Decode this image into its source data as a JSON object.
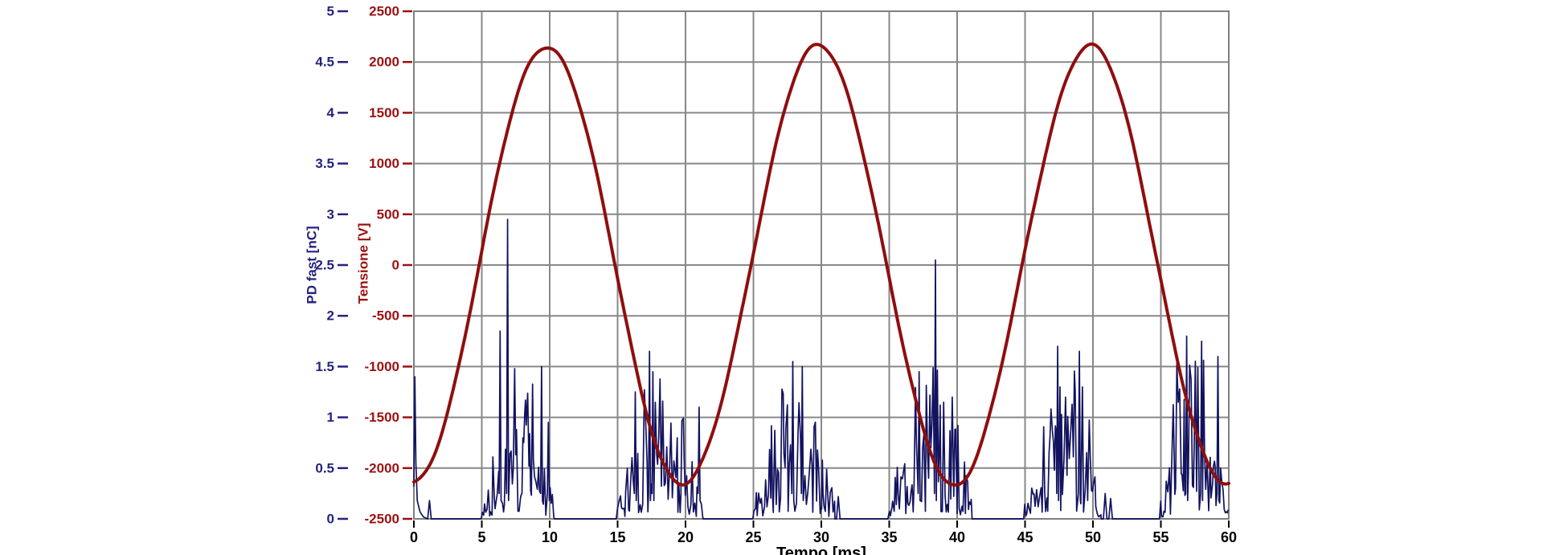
{
  "chart_data": {
    "type": "line",
    "title": "",
    "xlabel": "Tempo [ms]",
    "x_range": [
      0,
      60
    ],
    "x_ticks": [
      "0",
      "5",
      "10",
      "15",
      "20",
      "25",
      "30",
      "35",
      "40",
      "45",
      "50",
      "55",
      "60"
    ],
    "grid": {
      "visible": true,
      "x_step_ms": 5,
      "y_step_V": 500,
      "color": "#888888",
      "border_color": "#7f7f7f"
    },
    "background": "#ffffff",
    "legend": "none",
    "axes": {
      "pd": {
        "label": "PD fast [nC]",
        "range": [
          0,
          5
        ],
        "ticks": [
          "5",
          "4.5",
          "4",
          "3.5",
          "3",
          "2.5",
          "2",
          "1.5",
          "1",
          "0.5",
          "0"
        ],
        "text_color": "#23237E"
      },
      "voltage": {
        "label": "Tensione [V]",
        "range": [
          -2500,
          2500
        ],
        "ticks": [
          "2500",
          "2000",
          "1500",
          "1000",
          "500",
          "0",
          "-500",
          "-1000",
          "-1500",
          "-2000",
          "-2500"
        ],
        "text_color": "#9B1111"
      },
      "time": {
        "label": "Tempo [ms]",
        "text_color": "#000000"
      }
    },
    "series": [
      {
        "name": "Tensione",
        "kind": "sine",
        "color": "#8F0E0E",
        "stroke_width": 4,
        "amplitude_V": 2160,
        "period_ms": 20,
        "rising_zero_crossing_ms": 4.8,
        "peak_V": 2160,
        "trough_V": -2160,
        "value_at_0ms_V": -2156,
        "peaks_at_ms": [
          9.8,
          29.8,
          49.8
        ],
        "troughs_at_ms": [
          19.8,
          39.8,
          59.8
        ],
        "cycle_sample_V_per_ms": [
          -2156,
          -2008,
          -1664,
          -1157,
          -537,
          136,
          795,
          1377,
          1824,
          2092,
          2156,
          2008,
          1664,
          1157,
          537,
          -136,
          -795,
          -1377,
          -1824,
          -2092,
          -2156
        ]
      },
      {
        "name": "PD fast",
        "kind": "spike-bursts",
        "color": "#12125F",
        "stroke_width": 1.7,
        "baseline_nC": 0,
        "initial_spike_points_t_nC": [
          [
            0,
            0.32
          ],
          [
            0.07,
            1.4
          ],
          [
            0.15,
            0.55
          ],
          [
            0.25,
            0.18
          ],
          [
            0.45,
            0.07
          ],
          [
            0.7,
            0.02
          ],
          [
            1.0,
            0
          ]
        ],
        "isolated_bumps_t_nC": [
          [
            1.15,
            0.18
          ],
          [
            31.25,
            0.22
          ],
          [
            50.9,
            0.25
          ],
          [
            51.3,
            0.2
          ]
        ],
        "bursts": [
          {
            "start_ms": 4.95,
            "end_ms": 10.35,
            "max_typical_nC": 1.5
          },
          {
            "start_ms": 14.9,
            "end_ms": 21.3,
            "max_typical_nC": 1.45
          },
          {
            "start_ms": 24.95,
            "end_ms": 31.0,
            "max_typical_nC": 1.5
          },
          {
            "start_ms": 34.9,
            "end_ms": 41.1,
            "max_typical_nC": 1.5
          },
          {
            "start_ms": 44.9,
            "end_ms": 50.6,
            "max_typical_nC": 1.65
          },
          {
            "start_ms": 54.9,
            "end_ms": 60.0,
            "max_typical_nC": 1.8
          }
        ],
        "notable_spikes_t_nC": [
          [
            6.35,
            1.85
          ],
          [
            6.9,
            2.95
          ],
          [
            9.4,
            1.5
          ],
          [
            9.9,
            0.95
          ],
          [
            16.3,
            1.25
          ],
          [
            17.35,
            1.65
          ],
          [
            17.6,
            1.45
          ],
          [
            21.0,
            1.1
          ],
          [
            27.9,
            1.55
          ],
          [
            28.6,
            1.5
          ],
          [
            37.2,
            1.45
          ],
          [
            38.4,
            2.55
          ],
          [
            47.4,
            1.7
          ],
          [
            49.0,
            1.65
          ],
          [
            56.9,
            1.8
          ],
          [
            58.0,
            1.75
          ],
          [
            59.2,
            1.6
          ]
        ]
      }
    ]
  }
}
